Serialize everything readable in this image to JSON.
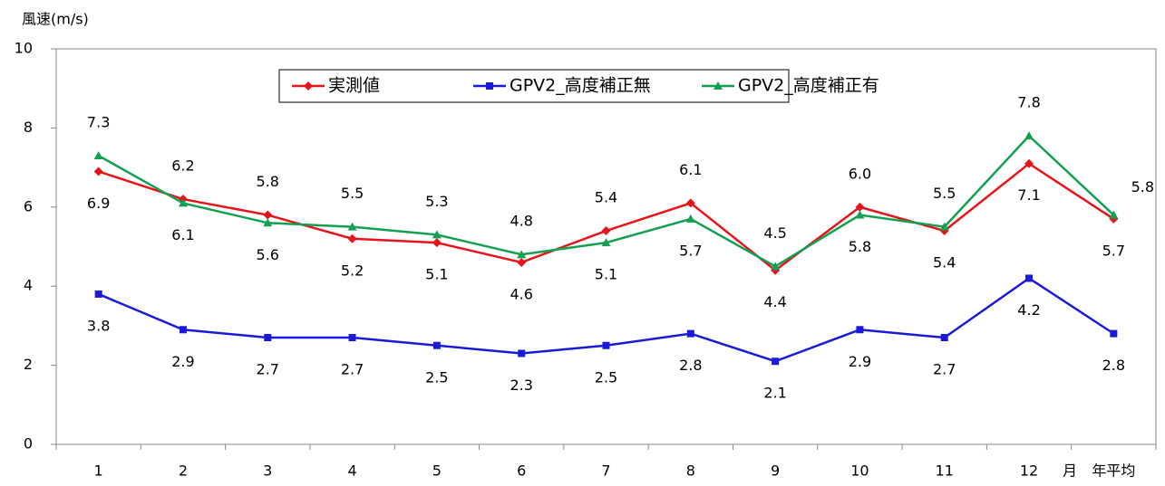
{
  "chart_data": {
    "type": "line",
    "y_label": "風速(m/s)",
    "x_label": "月",
    "categories": [
      "1",
      "2",
      "3",
      "4",
      "5",
      "6",
      "7",
      "8",
      "9",
      "10",
      "11",
      "12",
      "年平均"
    ],
    "series": [
      {
        "name": "実測値",
        "color": "#e8141b",
        "marker": "diamond",
        "values": [
          6.9,
          6.2,
          5.8,
          5.2,
          5.1,
          4.6,
          5.4,
          6.1,
          4.4,
          6.0,
          5.4,
          7.1,
          5.7
        ],
        "value_labels": [
          "6.9",
          "6.2",
          "5.8",
          "5.2",
          "5.1",
          "4.6",
          "5.4",
          "6.1",
          "4.4",
          "6.0",
          "5.4",
          "7.1",
          "5.7"
        ]
      },
      {
        "name": "GPV2_高度補正無",
        "color": "#1a1adc",
        "marker": "square",
        "values": [
          3.8,
          2.9,
          2.7,
          2.7,
          2.5,
          2.3,
          2.5,
          2.8,
          2.1,
          2.9,
          2.7,
          4.2,
          2.8
        ],
        "value_labels": [
          "3.8",
          "2.9",
          "2.7",
          "2.7",
          "2.5",
          "2.3",
          "2.5",
          "2.8",
          "2.1",
          "2.9",
          "2.7",
          "4.2",
          "2.8"
        ]
      },
      {
        "name": "GPV2_高度補正有",
        "color": "#14a050",
        "marker": "triangle",
        "values": [
          7.3,
          6.1,
          5.6,
          5.5,
          5.3,
          4.8,
          5.1,
          5.7,
          4.5,
          5.8,
          5.5,
          7.8,
          5.8
        ],
        "value_labels": [
          "7.3",
          "6.1",
          "5.6",
          "5.5",
          "5.3",
          "4.8",
          "5.1",
          "5.7",
          "4.5",
          "5.8",
          "5.5",
          "7.8",
          "5.8"
        ]
      }
    ],
    "ylim": [
      0,
      10
    ],
    "yticks": [
      0,
      2,
      4,
      6,
      8,
      10
    ],
    "grid": false,
    "legend": "top"
  }
}
